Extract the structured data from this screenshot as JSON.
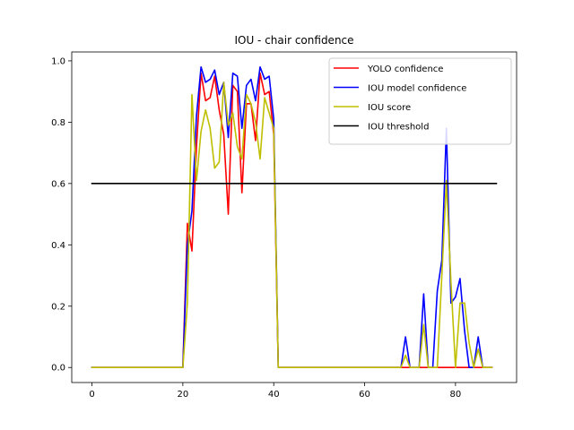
{
  "chart_data": {
    "type": "line",
    "title": "IOU - chair confidence",
    "xlabel": "",
    "ylabel": "",
    "xlim": [
      -4.45,
      93.45
    ],
    "ylim": [
      -0.049,
      1.029
    ],
    "xticks": [
      0,
      20,
      40,
      60,
      80
    ],
    "yticks": [
      0.0,
      0.2,
      0.4,
      0.6,
      0.8,
      1.0
    ],
    "xtick_labels": [
      "0",
      "20",
      "40",
      "60",
      "80"
    ],
    "ytick_labels": [
      "0.0",
      "0.2",
      "0.4",
      "0.6",
      "0.8",
      "1.0"
    ],
    "grid": false,
    "legend_position": "upper right",
    "series": [
      {
        "name": "YOLO confidence",
        "color": "#ff0000",
        "x": [
          0,
          1,
          2,
          3,
          4,
          5,
          6,
          7,
          8,
          9,
          10,
          11,
          12,
          13,
          14,
          15,
          16,
          17,
          18,
          19,
          20,
          21,
          22,
          23,
          24,
          25,
          26,
          27,
          28,
          29,
          30,
          31,
          32,
          33,
          34,
          35,
          36,
          37,
          38,
          39,
          40,
          41,
          42,
          43,
          44,
          45,
          46,
          47,
          48,
          49,
          50,
          51,
          52,
          53,
          54,
          55,
          56,
          57,
          58,
          59,
          60,
          61,
          62,
          63,
          64,
          65,
          66,
          67,
          68,
          69,
          70,
          71,
          72,
          73,
          74,
          75,
          76,
          77,
          78,
          79,
          80,
          81,
          82,
          83,
          84,
          85,
          86,
          87,
          88
        ],
        "y": [
          0,
          0,
          0,
          0,
          0,
          0,
          0,
          0,
          0,
          0,
          0,
          0,
          0,
          0,
          0,
          0,
          0,
          0,
          0,
          0,
          0,
          0.47,
          0.38,
          0.72,
          0.96,
          0.87,
          0.88,
          0.95,
          0.84,
          0.76,
          0.5,
          0.92,
          0.9,
          0.57,
          0.86,
          0.86,
          0.74,
          0.96,
          0.89,
          0.9,
          0.76,
          0,
          0,
          0,
          0,
          0,
          0,
          0,
          0,
          0,
          0,
          0,
          0,
          0,
          0,
          0,
          0,
          0,
          0,
          0,
          0,
          0,
          0,
          0,
          0,
          0,
          0,
          0,
          0,
          0,
          0,
          0,
          0,
          0,
          0,
          0,
          0,
          0,
          0,
          0,
          0,
          0,
          0,
          0,
          0,
          0,
          0,
          0,
          0
        ]
      },
      {
        "name": "IOU model confidence",
        "color": "#0000ff",
        "x": [
          0,
          1,
          2,
          3,
          4,
          5,
          6,
          7,
          8,
          9,
          10,
          11,
          12,
          13,
          14,
          15,
          16,
          17,
          18,
          19,
          20,
          21,
          22,
          23,
          24,
          25,
          26,
          27,
          28,
          29,
          30,
          31,
          32,
          33,
          34,
          35,
          36,
          37,
          38,
          39,
          40,
          41,
          42,
          43,
          44,
          45,
          46,
          47,
          48,
          49,
          50,
          51,
          52,
          53,
          54,
          55,
          56,
          57,
          58,
          59,
          60,
          61,
          62,
          63,
          64,
          65,
          66,
          67,
          68,
          69,
          70,
          71,
          72,
          73,
          74,
          75,
          76,
          77,
          78,
          79,
          80,
          81,
          82,
          83,
          84,
          85,
          86,
          87,
          88
        ],
        "y": [
          0,
          0,
          0,
          0,
          0,
          0,
          0,
          0,
          0,
          0,
          0,
          0,
          0,
          0,
          0,
          0,
          0,
          0,
          0,
          0,
          0,
          0.4,
          0.51,
          0.82,
          0.98,
          0.93,
          0.94,
          0.97,
          0.89,
          0.93,
          0.75,
          0.96,
          0.95,
          0.78,
          0.92,
          0.94,
          0.87,
          0.98,
          0.94,
          0.95,
          0.81,
          0,
          0,
          0,
          0,
          0,
          0,
          0,
          0,
          0,
          0,
          0,
          0,
          0,
          0,
          0,
          0,
          0,
          0,
          0,
          0,
          0,
          0,
          0,
          0,
          0,
          0,
          0,
          0,
          0.1,
          0,
          0,
          0,
          0.24,
          0,
          0,
          0.25,
          0.35,
          0.78,
          0.21,
          0.23,
          0.29,
          0.12,
          0,
          0,
          0.1,
          0,
          0,
          0
        ]
      },
      {
        "name": "IOU score",
        "color": "#bfbf00",
        "x": [
          0,
          1,
          2,
          3,
          4,
          5,
          6,
          7,
          8,
          9,
          10,
          11,
          12,
          13,
          14,
          15,
          16,
          17,
          18,
          19,
          20,
          21,
          22,
          23,
          24,
          25,
          26,
          27,
          28,
          29,
          30,
          31,
          32,
          33,
          34,
          35,
          36,
          37,
          38,
          39,
          40,
          41,
          42,
          43,
          44,
          45,
          46,
          47,
          48,
          49,
          50,
          51,
          52,
          53,
          54,
          55,
          56,
          57,
          58,
          59,
          60,
          61,
          62,
          63,
          64,
          65,
          66,
          67,
          68,
          69,
          70,
          71,
          72,
          73,
          74,
          75,
          76,
          77,
          78,
          79,
          80,
          81,
          82,
          83,
          84,
          85,
          86,
          87,
          88
        ],
        "y": [
          0,
          0,
          0,
          0,
          0,
          0,
          0,
          0,
          0,
          0,
          0,
          0,
          0,
          0,
          0,
          0,
          0,
          0,
          0,
          0,
          0,
          0.21,
          0.89,
          0.61,
          0.77,
          0.84,
          0.78,
          0.65,
          0.67,
          0.93,
          0.79,
          0.83,
          0.72,
          0.68,
          0.89,
          0.86,
          0.8,
          0.68,
          0.88,
          0.83,
          0.78,
          0,
          0,
          0,
          0,
          0,
          0,
          0,
          0,
          0,
          0,
          0,
          0,
          0,
          0,
          0,
          0,
          0,
          0,
          0,
          0,
          0,
          0,
          0,
          0,
          0,
          0,
          0,
          0,
          0.04,
          0,
          0,
          0,
          0.14,
          0,
          0,
          0,
          0.3,
          0.61,
          0.28,
          0,
          0.21,
          0.21,
          0.08,
          0,
          0.06,
          0,
          0,
          0
        ]
      },
      {
        "name": "IOU threshold",
        "color": "#000000",
        "x": [
          0,
          89
        ],
        "y": [
          0.6,
          0.6
        ]
      }
    ]
  }
}
